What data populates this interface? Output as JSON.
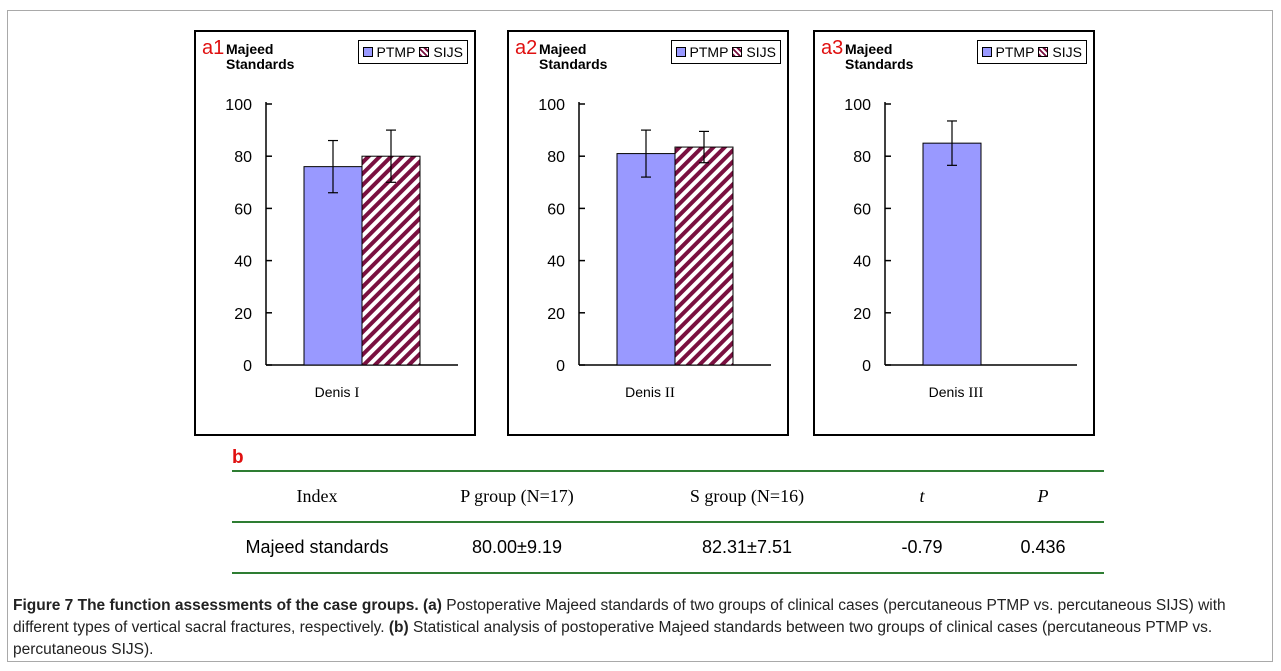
{
  "chart_data": [
    {
      "type": "bar",
      "panel_tag": "a1",
      "title": "Majeed Standards",
      "legend": [
        "PTMP",
        "SIJS"
      ],
      "categories": [
        "Denis"
      ],
      "category_numeral": "I",
      "series": [
        {
          "name": "PTMP",
          "values": [
            76
          ],
          "error": [
            10
          ]
        },
        {
          "name": "SIJS",
          "values": [
            80
          ],
          "error": [
            10
          ]
        }
      ],
      "yticks": [
        0,
        20,
        40,
        60,
        80,
        100
      ],
      "ylim": [
        0,
        100
      ]
    },
    {
      "type": "bar",
      "panel_tag": "a2",
      "title": "Majeed Standards",
      "legend": [
        "PTMP",
        "SIJS"
      ],
      "categories": [
        "Denis"
      ],
      "category_numeral": "II",
      "series": [
        {
          "name": "PTMP",
          "values": [
            81
          ],
          "error": [
            9
          ]
        },
        {
          "name": "SIJS",
          "values": [
            83.5
          ],
          "error": [
            6
          ]
        }
      ],
      "yticks": [
        0,
        20,
        40,
        60,
        80,
        100
      ],
      "ylim": [
        0,
        100
      ]
    },
    {
      "type": "bar",
      "panel_tag": "a3",
      "title": "Majeed Standards",
      "legend": [
        "PTMP",
        "SIJS"
      ],
      "categories": [
        "Denis"
      ],
      "category_numeral": "III",
      "series": [
        {
          "name": "PTMP",
          "values": [
            85
          ],
          "error": [
            8.5
          ]
        }
      ],
      "yticks": [
        0,
        20,
        40,
        60,
        80,
        100
      ],
      "ylim": [
        0,
        100
      ]
    }
  ],
  "colors": {
    "ptmp": "#9999ff",
    "sijs_stripe": "#7a1040",
    "tag": "#e01010",
    "table_rule": "#2e7d32"
  },
  "table": {
    "label": "b",
    "headers": [
      "Index",
      "P group (N=17)",
      "S group (N=16)",
      "t",
      "P"
    ],
    "rows": [
      [
        "Majeed standards",
        "80.00±9.19",
        "82.31±7.51",
        "-0.79",
        "0.436"
      ]
    ]
  },
  "caption": {
    "title": "Figure 7 The function assessments of the case groups.",
    "a_label": "(a)",
    "a_text": "Postoperative Majeed standards of two groups of clinical cases (percutaneous PTMP vs. percutaneous SIJS) with different types of vertical sacral fractures, respectively.",
    "b_label": "(b)",
    "b_text": "Statistical analysis of postoperative Majeed standards between two groups of clinical cases (percutaneous PTMP vs. percutaneous SIJS)."
  }
}
